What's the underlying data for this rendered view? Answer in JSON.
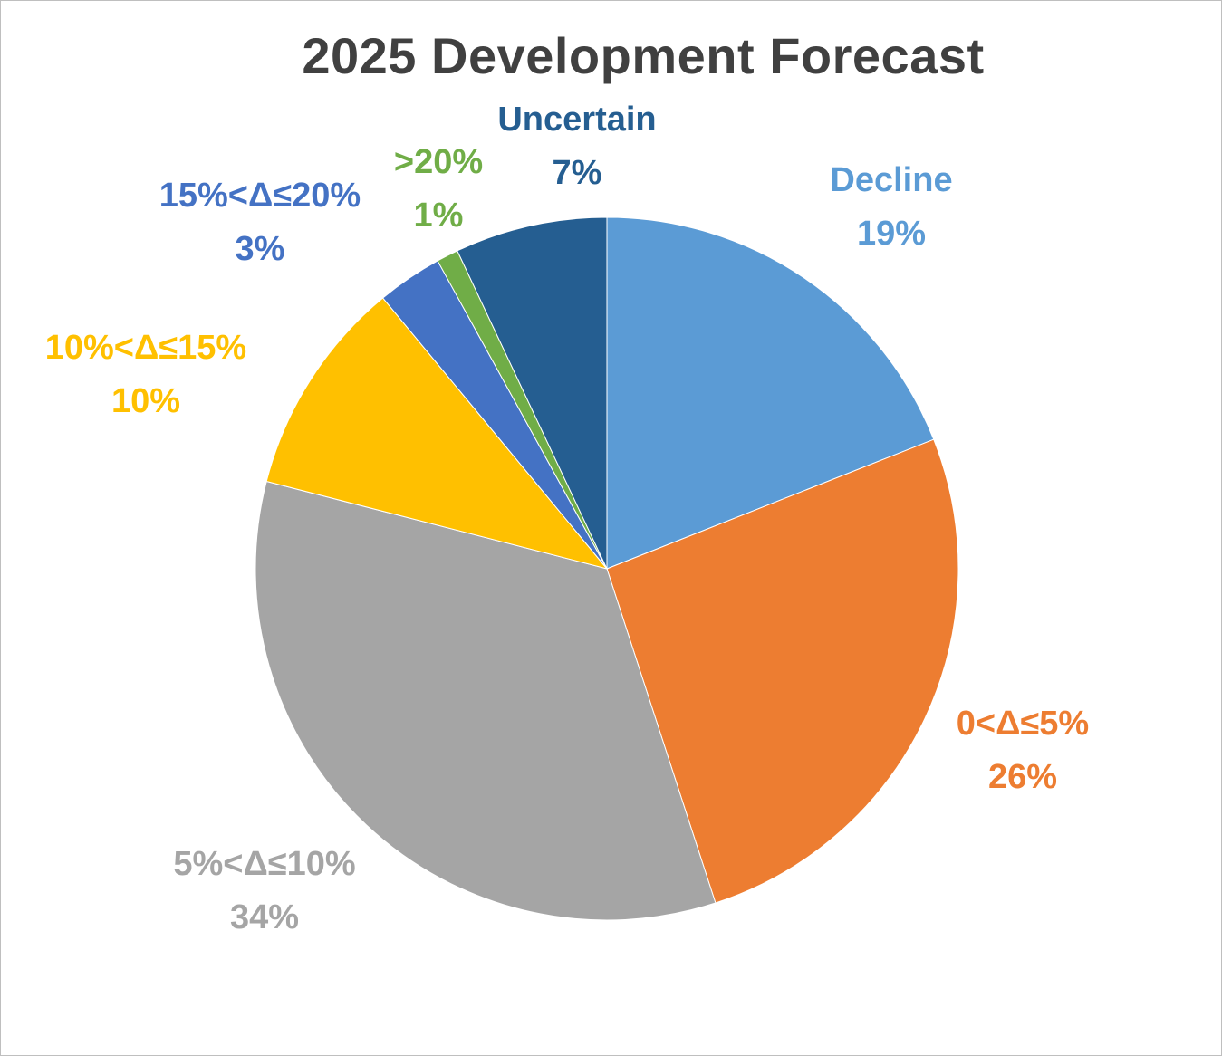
{
  "chart_data": {
    "type": "pie",
    "title": "2025 Development Forecast",
    "start_angle_deg": 0,
    "direction": "clockwise",
    "slices": [
      {
        "label": "Decline",
        "value": 19,
        "value_label": "19%",
        "color": "#5b9bd5"
      },
      {
        "label": "0<Δ≤5%",
        "value": 26,
        "value_label": "26%",
        "color": "#ed7d31"
      },
      {
        "label": "5%<Δ≤10%",
        "value": 34,
        "value_label": "34%",
        "color": "#a5a5a5"
      },
      {
        "label": "10%<Δ≤15%",
        "value": 10,
        "value_label": "10%",
        "color": "#ffc000"
      },
      {
        "label": "15%<Δ≤20%",
        "value": 3,
        "value_label": "3%",
        "color": "#4472c4"
      },
      {
        "label": ">20%",
        "value": 1,
        "value_label": "1%",
        "color": "#70ad47"
      },
      {
        "label": "Uncertain",
        "value": 7,
        "value_label": "7%",
        "color": "#255e91"
      }
    ],
    "legend": "none",
    "data_labels": "outside"
  }
}
